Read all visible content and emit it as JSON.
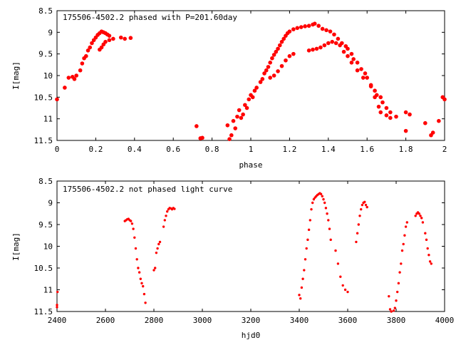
{
  "chart_data": [
    {
      "type": "scatter",
      "title": "175506-4502.2 phased with P=201.60day",
      "xlabel": "phase",
      "ylabel": "I[mag]",
      "xlim": [
        0,
        2
      ],
      "ylim": [
        11.5,
        8.5
      ],
      "y_inverted": true,
      "grid": false,
      "x_ticks": [
        "0",
        "0.2",
        "0.4",
        "0.6",
        "0.8",
        "1",
        "1.2",
        "1.4",
        "1.6",
        "1.8",
        "2"
      ],
      "y_ticks": [
        "8.5",
        "9",
        "9.5",
        "10",
        "10.5",
        "11",
        "11.5"
      ],
      "marker_color": "#ff0000",
      "series": [
        {
          "points": [
            [
              0.0,
              10.55
            ],
            [
              0.04,
              10.28
            ],
            [
              0.06,
              10.05
            ],
            [
              0.08,
              10.03
            ],
            [
              0.09,
              10.08
            ],
            [
              0.1,
              10.0
            ],
            [
              0.12,
              9.88
            ],
            [
              0.13,
              9.72
            ],
            [
              0.14,
              9.6
            ],
            [
              0.15,
              9.55
            ],
            [
              0.16,
              9.42
            ],
            [
              0.17,
              9.35
            ],
            [
              0.18,
              9.25
            ],
            [
              0.19,
              9.18
            ],
            [
              0.2,
              9.12
            ],
            [
              0.21,
              9.06
            ],
            [
              0.22,
              9.02
            ],
            [
              0.23,
              8.98
            ],
            [
              0.24,
              9.0
            ],
            [
              0.25,
              9.02
            ],
            [
              0.26,
              9.05
            ],
            [
              0.27,
              9.08
            ],
            [
              0.22,
              9.4
            ],
            [
              0.23,
              9.35
            ],
            [
              0.24,
              9.28
            ],
            [
              0.25,
              9.22
            ],
            [
              0.27,
              9.18
            ],
            [
              0.29,
              9.15
            ],
            [
              0.33,
              9.12
            ],
            [
              0.35,
              9.15
            ],
            [
              0.38,
              9.13
            ],
            [
              0.72,
              11.17
            ],
            [
              0.74,
              11.45
            ],
            [
              0.75,
              11.44
            ],
            [
              0.88,
              11.15
            ],
            [
              0.89,
              11.47
            ],
            [
              0.9,
              11.38
            ],
            [
              0.91,
              11.05
            ],
            [
              0.92,
              11.22
            ],
            [
              0.93,
              10.95
            ],
            [
              0.94,
              10.8
            ],
            [
              0.95,
              10.98
            ],
            [
              0.96,
              10.9
            ],
            [
              0.97,
              10.68
            ],
            [
              0.98,
              10.75
            ],
            [
              0.99,
              10.55
            ],
            [
              1.0,
              10.45
            ],
            [
              1.01,
              10.5
            ],
            [
              1.02,
              10.35
            ],
            [
              1.03,
              10.28
            ],
            [
              1.05,
              10.15
            ],
            [
              1.06,
              10.08
            ],
            [
              1.07,
              9.95
            ],
            [
              1.08,
              9.88
            ],
            [
              1.09,
              9.8
            ],
            [
              1.1,
              9.7
            ],
            [
              1.11,
              9.6
            ],
            [
              1.12,
              9.52
            ],
            [
              1.13,
              9.45
            ],
            [
              1.14,
              9.38
            ],
            [
              1.15,
              9.3
            ],
            [
              1.16,
              9.22
            ],
            [
              1.17,
              9.15
            ],
            [
              1.18,
              9.08
            ],
            [
              1.19,
              9.02
            ],
            [
              1.2,
              8.98
            ],
            [
              1.22,
              8.93
            ],
            [
              1.24,
              8.9
            ],
            [
              1.26,
              8.88
            ],
            [
              1.28,
              8.86
            ],
            [
              1.3,
              8.85
            ],
            [
              1.32,
              8.82
            ],
            [
              1.33,
              8.8
            ],
            [
              1.35,
              8.85
            ],
            [
              1.37,
              8.92
            ],
            [
              1.39,
              8.95
            ],
            [
              1.41,
              8.98
            ],
            [
              1.43,
              9.05
            ],
            [
              1.45,
              9.15
            ],
            [
              1.47,
              9.25
            ],
            [
              1.49,
              9.32
            ],
            [
              1.5,
              9.38
            ],
            [
              1.52,
              9.5
            ],
            [
              1.53,
              9.62
            ],
            [
              1.55,
              9.7
            ],
            [
              1.57,
              9.85
            ],
            [
              1.59,
              9.95
            ],
            [
              1.6,
              10.05
            ],
            [
              1.62,
              10.25
            ],
            [
              1.64,
              10.5
            ],
            [
              1.66,
              10.72
            ],
            [
              1.67,
              10.85
            ],
            [
              1.7,
              10.92
            ],
            [
              1.72,
              10.98
            ],
            [
              1.1,
              10.05
            ],
            [
              1.12,
              10.0
            ],
            [
              1.14,
              9.9
            ],
            [
              1.16,
              9.78
            ],
            [
              1.18,
              9.65
            ],
            [
              1.2,
              9.55
            ],
            [
              1.22,
              9.5
            ],
            [
              1.3,
              9.42
            ],
            [
              1.32,
              9.4
            ],
            [
              1.34,
              9.38
            ],
            [
              1.36,
              9.35
            ],
            [
              1.38,
              9.3
            ],
            [
              1.4,
              9.25
            ],
            [
              1.42,
              9.22
            ],
            [
              1.44,
              9.25
            ],
            [
              1.46,
              9.3
            ],
            [
              1.48,
              9.45
            ],
            [
              1.5,
              9.55
            ],
            [
              1.52,
              9.7
            ],
            [
              1.55,
              9.88
            ],
            [
              1.58,
              10.05
            ],
            [
              1.62,
              10.22
            ],
            [
              1.64,
              10.35
            ],
            [
              1.65,
              10.45
            ],
            [
              1.67,
              10.5
            ],
            [
              1.68,
              10.62
            ],
            [
              1.7,
              10.75
            ],
            [
              1.72,
              10.85
            ],
            [
              1.75,
              10.95
            ],
            [
              1.8,
              10.85
            ],
            [
              1.82,
              10.9
            ],
            [
              1.8,
              11.28
            ],
            [
              1.9,
              11.1
            ],
            [
              1.93,
              11.38
            ],
            [
              1.94,
              11.32
            ],
            [
              1.97,
              11.05
            ],
            [
              1.99,
              10.5
            ],
            [
              2.0,
              10.55
            ]
          ]
        }
      ]
    },
    {
      "type": "scatter",
      "title": "175506-4502.2 not phased light curve",
      "xlabel": "hjd0",
      "ylabel": "I[mag]",
      "xlim": [
        2400,
        4000
      ],
      "ylim": [
        11.5,
        8.5
      ],
      "y_inverted": true,
      "grid": false,
      "x_ticks": [
        "2400",
        "2600",
        "2800",
        "3000",
        "3200",
        "3400",
        "3600",
        "3800",
        "4000"
      ],
      "y_ticks": [
        "8.5",
        "9",
        "9.5",
        "10",
        "10.5",
        "11",
        "11.5"
      ],
      "marker_color": "#ff0000",
      "series": [
        {
          "points": [
            [
              2400,
              11.35
            ],
            [
              2400,
              11.4
            ],
            [
              2402,
              11.05
            ],
            [
              2680,
              9.42
            ],
            [
              2685,
              9.4
            ],
            [
              2690,
              9.38
            ],
            [
              2695,
              9.37
            ],
            [
              2700,
              9.4
            ],
            [
              2705,
              9.42
            ],
            [
              2710,
              9.48
            ],
            [
              2715,
              9.6
            ],
            [
              2720,
              9.8
            ],
            [
              2725,
              10.05
            ],
            [
              2730,
              10.3
            ],
            [
              2735,
              10.5
            ],
            [
              2740,
              10.6
            ],
            [
              2745,
              10.75
            ],
            [
              2750,
              10.85
            ],
            [
              2755,
              10.92
            ],
            [
              2760,
              11.1
            ],
            [
              2765,
              11.3
            ],
            [
              2800,
              10.55
            ],
            [
              2805,
              10.5
            ],
            [
              2810,
              10.15
            ],
            [
              2815,
              10.05
            ],
            [
              2820,
              9.95
            ],
            [
              2825,
              9.9
            ],
            [
              2840,
              9.55
            ],
            [
              2845,
              9.4
            ],
            [
              2850,
              9.3
            ],
            [
              2855,
              9.2
            ],
            [
              2860,
              9.15
            ],
            [
              2865,
              9.12
            ],
            [
              2870,
              9.13
            ],
            [
              2875,
              9.15
            ],
            [
              2880,
              9.12
            ],
            [
              2885,
              9.14
            ],
            [
              3400,
              11.12
            ],
            [
              3405,
              11.2
            ],
            [
              3410,
              10.95
            ],
            [
              3415,
              10.75
            ],
            [
              3420,
              10.55
            ],
            [
              3425,
              10.3
            ],
            [
              3430,
              10.05
            ],
            [
              3435,
              9.85
            ],
            [
              3440,
              9.62
            ],
            [
              3445,
              9.4
            ],
            [
              3450,
              9.15
            ],
            [
              3455,
              9.0
            ],
            [
              3460,
              8.92
            ],
            [
              3465,
              8.88
            ],
            [
              3470,
              8.85
            ],
            [
              3475,
              8.82
            ],
            [
              3480,
              8.8
            ],
            [
              3485,
              8.78
            ],
            [
              3490,
              8.8
            ],
            [
              3495,
              8.85
            ],
            [
              3500,
              8.92
            ],
            [
              3505,
              9.0
            ],
            [
              3510,
              9.12
            ],
            [
              3515,
              9.25
            ],
            [
              3520,
              9.4
            ],
            [
              3525,
              9.6
            ],
            [
              3530,
              9.85
            ],
            [
              3550,
              10.1
            ],
            [
              3560,
              10.4
            ],
            [
              3570,
              10.7
            ],
            [
              3580,
              10.9
            ],
            [
              3590,
              11.0
            ],
            [
              3600,
              11.05
            ],
            [
              3635,
              9.9
            ],
            [
              3640,
              9.7
            ],
            [
              3645,
              9.5
            ],
            [
              3650,
              9.3
            ],
            [
              3655,
              9.15
            ],
            [
              3660,
              9.05
            ],
            [
              3665,
              9.0
            ],
            [
              3670,
              8.98
            ],
            [
              3675,
              9.05
            ],
            [
              3680,
              9.1
            ],
            [
              3770,
              11.15
            ],
            [
              3775,
              11.45
            ],
            [
              3780,
              11.5
            ],
            [
              3790,
              11.48
            ],
            [
              3795,
              11.42
            ],
            [
              3800,
              11.25
            ],
            [
              3805,
              11.05
            ],
            [
              3810,
              10.85
            ],
            [
              3815,
              10.6
            ],
            [
              3820,
              10.4
            ],
            [
              3825,
              10.1
            ],
            [
              3830,
              9.95
            ],
            [
              3835,
              9.75
            ],
            [
              3840,
              9.55
            ],
            [
              3845,
              9.45
            ],
            [
              3880,
              9.3
            ],
            [
              3885,
              9.25
            ],
            [
              3890,
              9.22
            ],
            [
              3895,
              9.25
            ],
            [
              3900,
              9.3
            ],
            [
              3905,
              9.35
            ],
            [
              3910,
              9.45
            ],
            [
              3920,
              9.7
            ],
            [
              3925,
              9.85
            ],
            [
              3930,
              10.05
            ],
            [
              3935,
              10.2
            ],
            [
              3940,
              10.35
            ],
            [
              3945,
              10.4
            ]
          ]
        }
      ]
    }
  ]
}
